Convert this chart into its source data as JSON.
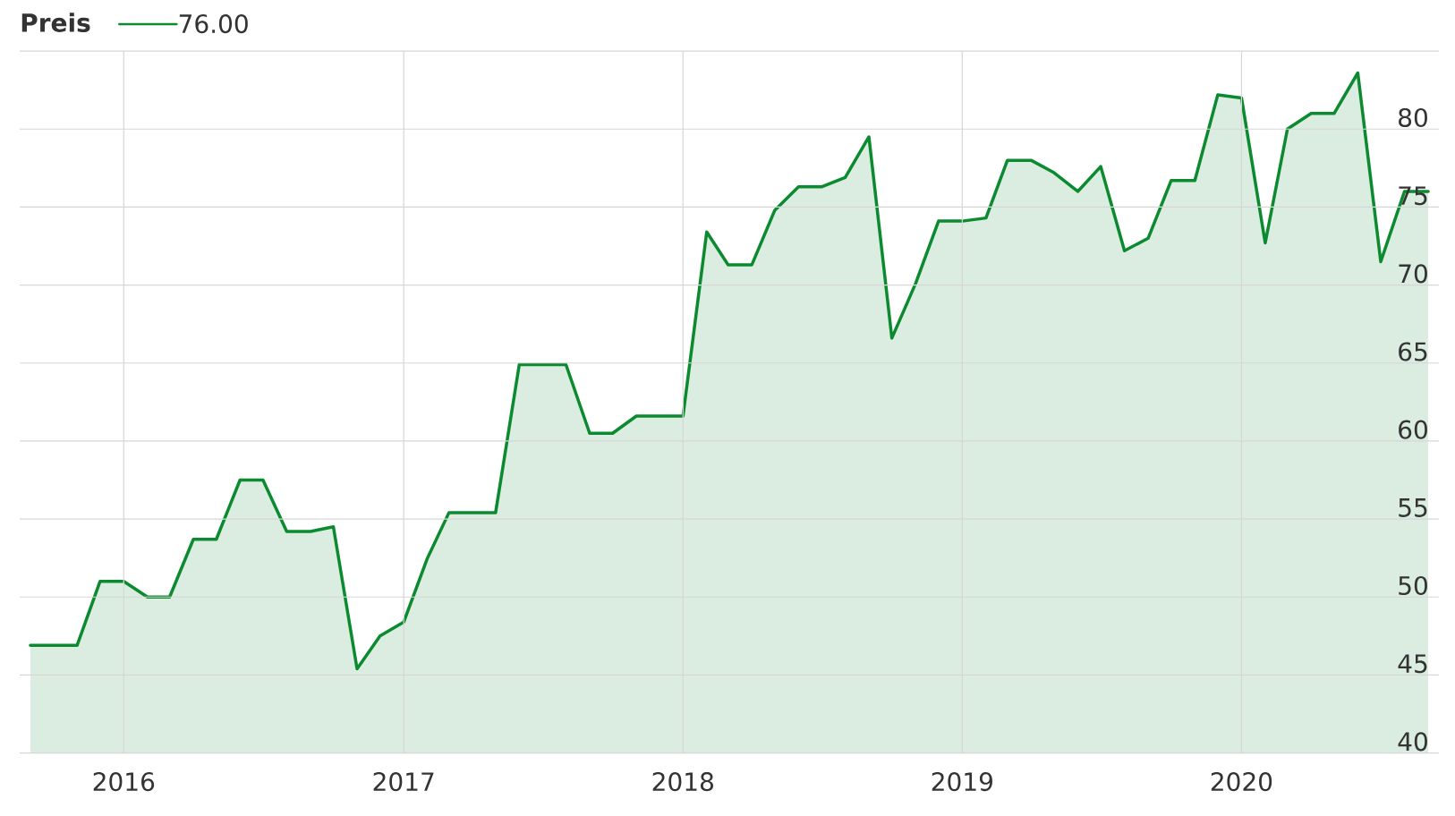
{
  "chart_data": {
    "type": "area",
    "title": "Preis",
    "x": [
      "2015-09",
      "2015-10",
      "2015-11",
      "2015-12",
      "2016-01",
      "2016-02",
      "2016-03",
      "2016-04",
      "2016-05",
      "2016-06",
      "2016-07",
      "2016-08",
      "2016-09",
      "2016-10",
      "2016-11",
      "2016-12",
      "2017-01",
      "2017-02",
      "2017-03",
      "2017-04",
      "2017-05",
      "2017-06",
      "2017-07",
      "2017-08",
      "2017-09",
      "2017-10",
      "2017-11",
      "2017-12",
      "2018-01",
      "2018-02",
      "2018-03",
      "2018-04",
      "2018-05",
      "2018-06",
      "2018-07",
      "2018-08",
      "2018-09",
      "2018-10",
      "2018-11",
      "2018-12",
      "2019-01",
      "2019-02",
      "2019-03",
      "2019-04",
      "2019-05",
      "2019-06",
      "2019-07",
      "2019-08",
      "2019-09",
      "2019-10",
      "2019-11",
      "2019-12",
      "2020-01",
      "2020-02",
      "2020-03",
      "2020-04",
      "2020-05",
      "2020-06",
      "2020-07",
      "2020-08",
      "2020-09"
    ],
    "series": [
      {
        "name": "76.00",
        "color": "#0c8a2f",
        "values": [
          46.9,
          46.9,
          46.9,
          51.0,
          51.0,
          50.0,
          50.0,
          53.7,
          53.7,
          57.5,
          57.5,
          54.2,
          54.2,
          54.5,
          45.4,
          47.5,
          48.4,
          52.5,
          55.4,
          55.4,
          55.4,
          64.9,
          64.9,
          64.9,
          60.5,
          60.5,
          61.6,
          61.6,
          61.6,
          73.4,
          71.3,
          71.3,
          74.8,
          76.3,
          76.3,
          76.9,
          79.5,
          66.6,
          70.1,
          74.1,
          74.1,
          74.3,
          78.0,
          78.0,
          77.2,
          76.0,
          77.6,
          72.2,
          73.0,
          76.7,
          76.7,
          82.2,
          82.0,
          72.7,
          80.0,
          81.0,
          81.0,
          83.6,
          71.5,
          76.0,
          76.0
        ]
      }
    ],
    "xlim": [
      "2015-08-18",
      "2020-09-15"
    ],
    "xticks": [
      "2016",
      "2017",
      "2018",
      "2019",
      "2020"
    ],
    "ylim": [
      40,
      85
    ],
    "yticks": [
      40,
      45,
      50,
      55,
      60,
      65,
      70,
      75,
      80,
      {
        "value": 85,
        "label": null
      }
    ],
    "grid": true,
    "legend": "top left"
  }
}
